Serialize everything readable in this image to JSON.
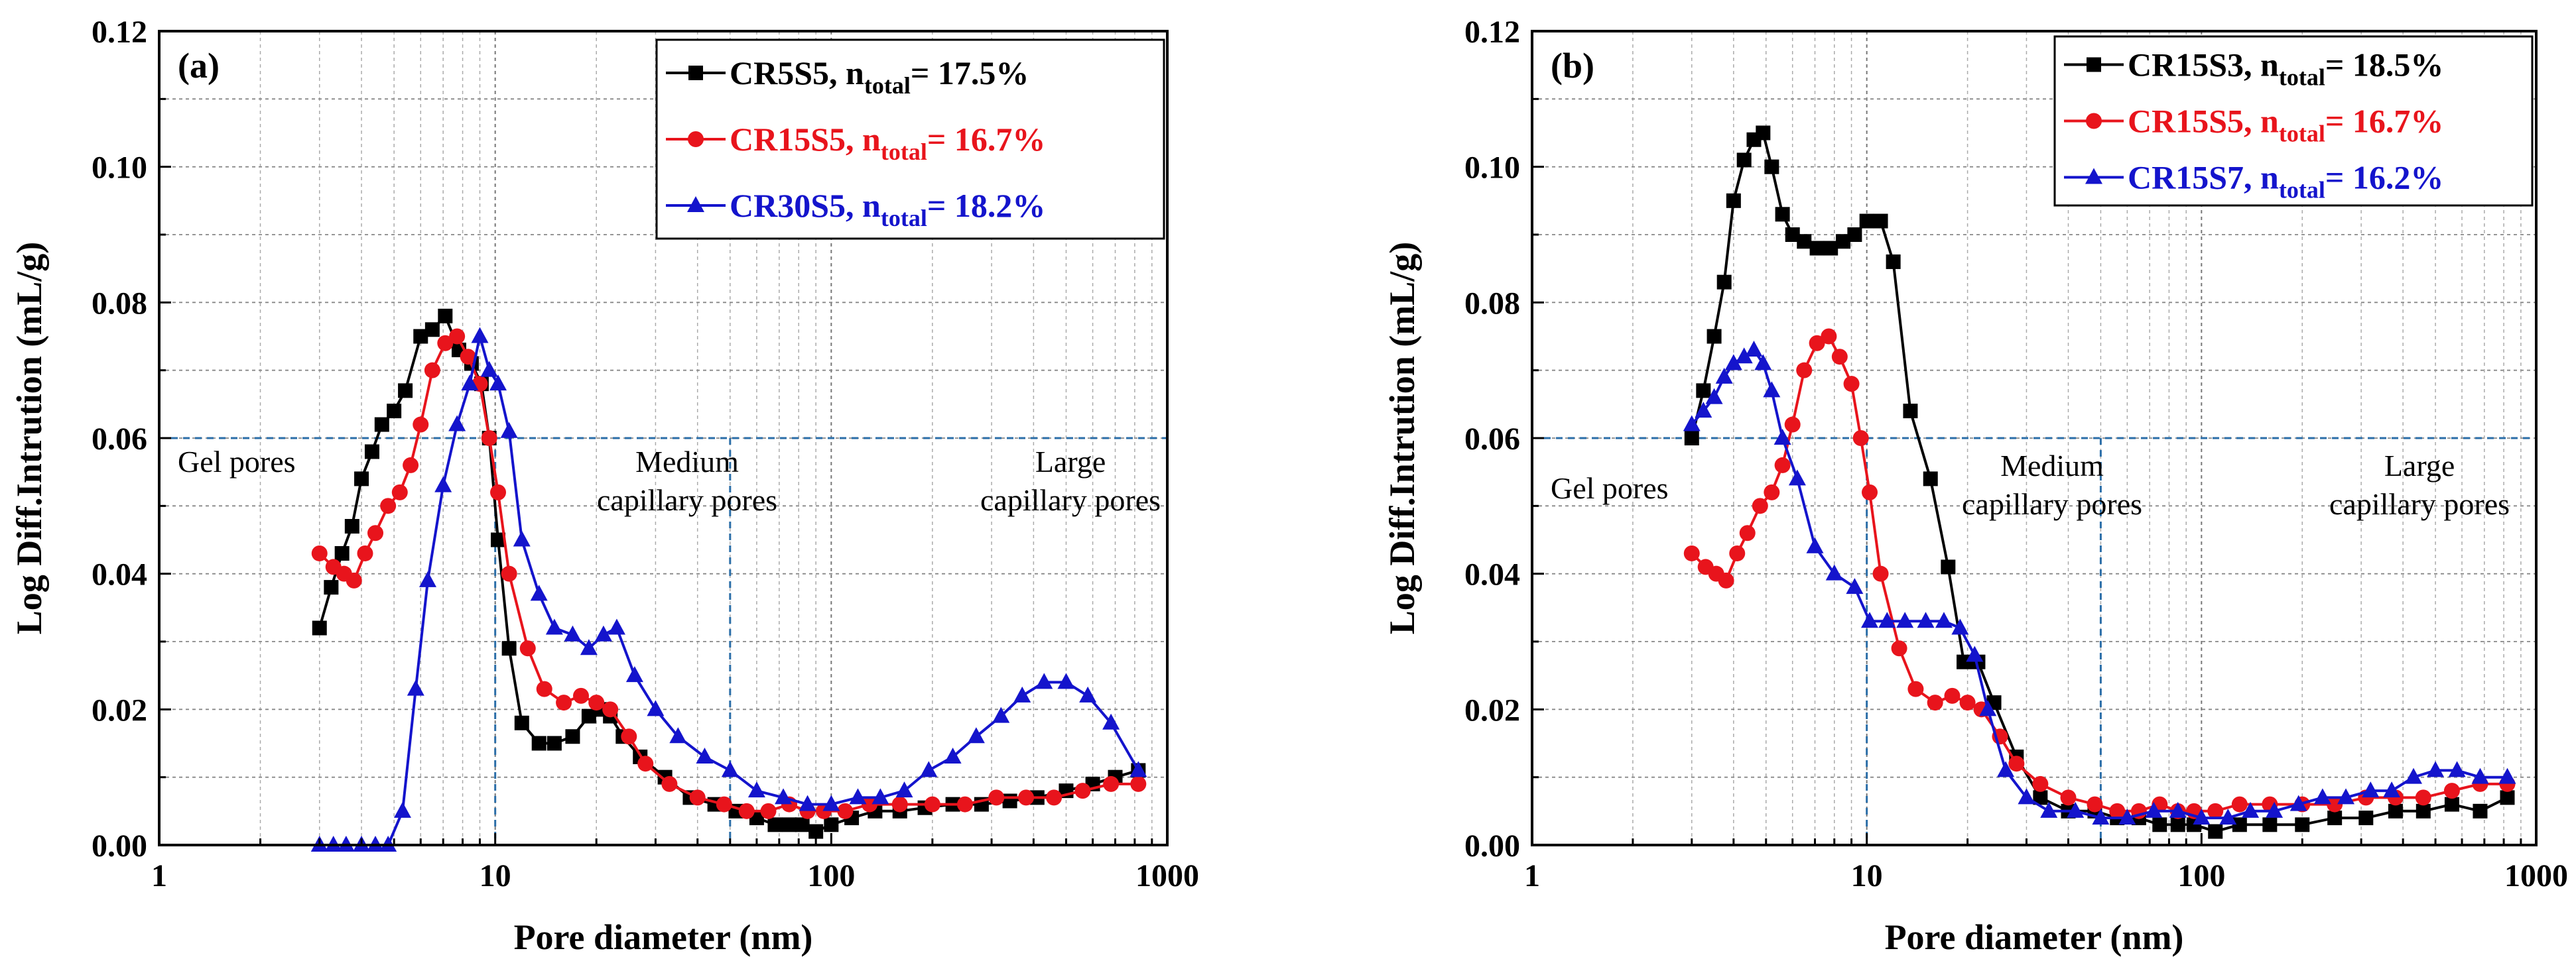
{
  "chart_data": [
    {
      "type": "line",
      "panel_label": "(a)",
      "xlabel": "Pore diameter (nm)",
      "ylabel": "Log Diff.Intrution (mL/g)",
      "xscale": "log",
      "xlim": [
        1,
        1000
      ],
      "ylim": [
        0,
        0.12
      ],
      "xtick_labels": [
        "1",
        "10",
        "100",
        "1000"
      ],
      "ytick_labels": [
        "0.00",
        "0.02",
        "0.04",
        "0.06",
        "0.08",
        "0.10",
        "0.12"
      ],
      "grid": true,
      "legend_position": "top-right",
      "reference_lines": {
        "horizontal_y": 0.06,
        "vertical_x": [
          10,
          50
        ]
      },
      "regions": [
        {
          "lines": [
            "Gel pores"
          ]
        },
        {
          "lines": [
            "Medium",
            "capillary pores"
          ]
        },
        {
          "lines": [
            "Large",
            "capillary pores"
          ]
        }
      ],
      "series": [
        {
          "name": "CR5S5",
          "legend_prefix": "CR5S5, n",
          "legend_sub": "total",
          "legend_value": "= 17.5%",
          "color": "#000000",
          "marker": "square",
          "x": [
            3.0,
            3.25,
            3.5,
            3.75,
            4.0,
            4.3,
            4.6,
            5.0,
            5.4,
            6.0,
            6.5,
            7.1,
            7.8,
            8.5,
            9.1,
            9.6,
            10.2,
            11.0,
            12.0,
            13.5,
            15.0,
            17.0,
            19.0,
            20.5,
            22.0,
            24.0,
            27.0,
            32.0,
            38.0,
            45.0,
            52.0,
            60.0,
            68.0,
            75.0,
            82.0,
            90.0,
            100.0,
            115.0,
            135.0,
            160.0,
            190.0,
            230.0,
            280.0,
            340.0,
            410.0,
            500.0,
            600.0,
            700.0,
            820.0
          ],
          "y": [
            0.032,
            0.038,
            0.043,
            0.047,
            0.054,
            0.058,
            0.062,
            0.064,
            0.067,
            0.075,
            0.076,
            0.078,
            0.073,
            0.071,
            0.068,
            0.06,
            0.045,
            0.029,
            0.018,
            0.015,
            0.015,
            0.016,
            0.019,
            0.02,
            0.019,
            0.016,
            0.013,
            0.01,
            0.007,
            0.006,
            0.005,
            0.004,
            0.003,
            0.003,
            0.003,
            0.002,
            0.003,
            0.004,
            0.005,
            0.005,
            0.0055,
            0.006,
            0.006,
            0.0065,
            0.007,
            0.008,
            0.009,
            0.01,
            0.011
          ]
        },
        {
          "name": "CR15S5",
          "legend_prefix": "CR15S5, n",
          "legend_sub": "total",
          "legend_value": "= 16.7%",
          "color": "#e8141c",
          "marker": "circle",
          "x": [
            3.0,
            3.3,
            3.55,
            3.8,
            4.1,
            4.4,
            4.8,
            5.2,
            5.6,
            6.0,
            6.5,
            7.1,
            7.7,
            8.3,
            9.0,
            9.6,
            10.2,
            11.0,
            12.5,
            14.0,
            16.0,
            18.0,
            20.0,
            22.0,
            25.0,
            28.0,
            33.0,
            40.0,
            48.0,
            56.0,
            65.0,
            75.0,
            85.0,
            95.0,
            110.0,
            130.0,
            160.0,
            200.0,
            250.0,
            310.0,
            380.0,
            460.0,
            560.0,
            680.0,
            820.0
          ],
          "y": [
            0.043,
            0.041,
            0.04,
            0.039,
            0.043,
            0.046,
            0.05,
            0.052,
            0.056,
            0.062,
            0.07,
            0.074,
            0.075,
            0.072,
            0.068,
            0.06,
            0.052,
            0.04,
            0.029,
            0.023,
            0.021,
            0.022,
            0.021,
            0.02,
            0.016,
            0.012,
            0.009,
            0.007,
            0.006,
            0.005,
            0.005,
            0.006,
            0.005,
            0.005,
            0.005,
            0.006,
            0.006,
            0.006,
            0.006,
            0.007,
            0.007,
            0.007,
            0.008,
            0.009,
            0.009
          ]
        },
        {
          "name": "CR30S5",
          "legend_prefix": "CR30S5, n",
          "legend_sub": "total",
          "legend_value": "= 18.2%",
          "color": "#1414cc",
          "marker": "triangle",
          "x": [
            3.0,
            3.3,
            3.6,
            4.0,
            4.4,
            4.8,
            5.3,
            5.8,
            6.3,
            7.0,
            7.7,
            8.4,
            9.0,
            9.6,
            10.2,
            11.0,
            12.0,
            13.5,
            15.0,
            17.0,
            19.0,
            21.0,
            23.0,
            26.0,
            30.0,
            35.0,
            42.0,
            50.0,
            60.0,
            72.0,
            85.0,
            100.0,
            120.0,
            140.0,
            165.0,
            195.0,
            230.0,
            270.0,
            320.0,
            370.0,
            430.0,
            500.0,
            580.0,
            680.0,
            820.0
          ],
          "y": [
            0.0,
            0.0,
            0.0,
            0.0,
            0.0,
            0.0,
            0.005,
            0.023,
            0.039,
            0.053,
            0.062,
            0.068,
            0.075,
            0.07,
            0.068,
            0.061,
            0.045,
            0.037,
            0.032,
            0.031,
            0.029,
            0.031,
            0.032,
            0.025,
            0.02,
            0.016,
            0.013,
            0.011,
            0.008,
            0.007,
            0.006,
            0.006,
            0.007,
            0.007,
            0.008,
            0.011,
            0.013,
            0.016,
            0.019,
            0.022,
            0.024,
            0.024,
            0.022,
            0.018,
            0.011
          ]
        }
      ]
    },
    {
      "type": "line",
      "panel_label": "(b)",
      "xlabel": "Pore diameter (nm)",
      "ylabel": "Log Diff.Intrution (mL/g)",
      "xscale": "log",
      "xlim": [
        1,
        1000
      ],
      "ylim": [
        0,
        0.12
      ],
      "xtick_labels": [
        "1",
        "10",
        "100",
        "1000"
      ],
      "ytick_labels": [
        "0.00",
        "0.02",
        "0.04",
        "0.06",
        "0.08",
        "0.10",
        "0.12"
      ],
      "grid": true,
      "legend_position": "top-right",
      "reference_lines": {
        "horizontal_y": 0.06,
        "vertical_x": [
          10,
          50
        ]
      },
      "regions": [
        {
          "lines": [
            "Gel pores"
          ]
        },
        {
          "lines": [
            "Medium",
            "capillary pores"
          ]
        },
        {
          "lines": [
            "Large",
            "capillary pores"
          ]
        }
      ],
      "series": [
        {
          "name": "CR15S3",
          "legend_prefix": "CR15S3, n",
          "legend_sub": "total",
          "legend_value": "= 18.5%",
          "color": "#000000",
          "marker": "square",
          "x": [
            3.0,
            3.25,
            3.5,
            3.75,
            4.0,
            4.3,
            4.6,
            4.9,
            5.2,
            5.6,
            6.0,
            6.5,
            7.1,
            7.8,
            8.5,
            9.2,
            10.0,
            11.0,
            12.0,
            13.5,
            15.5,
            17.5,
            19.5,
            21.5,
            24.0,
            28.0,
            33.0,
            40.0,
            48.0,
            56.0,
            65.0,
            75.0,
            85.0,
            95.0,
            110.0,
            130.0,
            160.0,
            200.0,
            250.0,
            310.0,
            380.0,
            460.0,
            560.0,
            680.0,
            820.0
          ],
          "y": [
            0.06,
            0.067,
            0.075,
            0.083,
            0.095,
            0.101,
            0.104,
            0.105,
            0.1,
            0.093,
            0.09,
            0.089,
            0.088,
            0.088,
            0.089,
            0.09,
            0.092,
            0.092,
            0.086,
            0.064,
            0.054,
            0.041,
            0.027,
            0.027,
            0.021,
            0.013,
            0.007,
            0.005,
            0.005,
            0.004,
            0.004,
            0.003,
            0.003,
            0.003,
            0.002,
            0.003,
            0.003,
            0.003,
            0.004,
            0.004,
            0.005,
            0.005,
            0.006,
            0.005,
            0.007
          ]
        },
        {
          "name": "CR15S5",
          "legend_prefix": "CR15S5, n",
          "legend_sub": "total",
          "legend_value": "= 16.7%",
          "color": "#e8141c",
          "marker": "circle",
          "x": [
            3.0,
            3.3,
            3.55,
            3.8,
            4.1,
            4.4,
            4.8,
            5.2,
            5.6,
            6.0,
            6.5,
            7.1,
            7.7,
            8.3,
            9.0,
            9.6,
            10.2,
            11.0,
            12.5,
            14.0,
            16.0,
            18.0,
            20.0,
            22.0,
            25.0,
            28.0,
            33.0,
            40.0,
            48.0,
            56.0,
            65.0,
            75.0,
            85.0,
            95.0,
            110.0,
            130.0,
            160.0,
            200.0,
            250.0,
            310.0,
            380.0,
            460.0,
            560.0,
            680.0,
            820.0
          ],
          "y": [
            0.043,
            0.041,
            0.04,
            0.039,
            0.043,
            0.046,
            0.05,
            0.052,
            0.056,
            0.062,
            0.07,
            0.074,
            0.075,
            0.072,
            0.068,
            0.06,
            0.052,
            0.04,
            0.029,
            0.023,
            0.021,
            0.022,
            0.021,
            0.02,
            0.016,
            0.012,
            0.009,
            0.007,
            0.006,
            0.005,
            0.005,
            0.006,
            0.005,
            0.005,
            0.005,
            0.006,
            0.006,
            0.006,
            0.006,
            0.007,
            0.007,
            0.007,
            0.008,
            0.009,
            0.009
          ]
        },
        {
          "name": "CR15S7",
          "legend_prefix": "CR15S7, n",
          "legend_sub": "total",
          "legend_value": "= 16.2%",
          "color": "#1414cc",
          "marker": "triangle",
          "x": [
            3.0,
            3.25,
            3.5,
            3.75,
            4.0,
            4.3,
            4.6,
            4.9,
            5.2,
            5.6,
            6.2,
            7.0,
            8.0,
            9.2,
            10.2,
            11.5,
            13.0,
            15.0,
            17.0,
            19.0,
            21.0,
            23.0,
            26.0,
            30.0,
            35.0,
            42.0,
            50.0,
            60.0,
            72.0,
            85.0,
            100.0,
            120.0,
            140.0,
            165.0,
            195.0,
            230.0,
            270.0,
            320.0,
            370.0,
            430.0,
            500.0,
            580.0,
            680.0,
            820.0
          ],
          "y": [
            0.062,
            0.064,
            0.066,
            0.069,
            0.071,
            0.072,
            0.073,
            0.071,
            0.067,
            0.06,
            0.054,
            0.044,
            0.04,
            0.038,
            0.033,
            0.033,
            0.033,
            0.033,
            0.033,
            0.032,
            0.028,
            0.02,
            0.011,
            0.007,
            0.005,
            0.005,
            0.004,
            0.004,
            0.005,
            0.005,
            0.004,
            0.004,
            0.005,
            0.005,
            0.006,
            0.007,
            0.007,
            0.008,
            0.008,
            0.01,
            0.011,
            0.011,
            0.01,
            0.01
          ]
        }
      ]
    }
  ]
}
